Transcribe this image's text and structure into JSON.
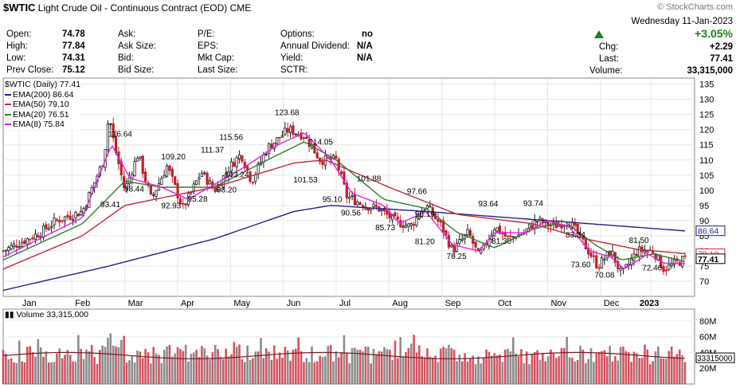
{
  "header": {
    "symbol": "$WTIC",
    "name": "Light Crude Oil - Continuous Contract (EOD)",
    "exchange": "CME",
    "watermark": "© StockCharts.com",
    "date": "Wednesday  11-Jan-2023",
    "change_pct": "+3.05%"
  },
  "quote": {
    "open_label": "Open:",
    "open": "74.78",
    "high_label": "High:",
    "high": "77.84",
    "low_label": "Low:",
    "low": "74.31",
    "prev_label": "Prev Close:",
    "prev": "75.12",
    "ask_label": "Ask:",
    "ask_size_label": "Ask Size:",
    "bid_label": "Bid:",
    "bid_size_label": "Bid Size:",
    "pe_label": "P/E:",
    "eps_label": "EPS:",
    "mktcap_label": "Mkt Cap:",
    "lastsize_label": "Last Size:",
    "options_label": "Options:",
    "options": "no",
    "div_label": "Annual Dividend:",
    "div": "N/A",
    "yield_label": "Yield:",
    "yield": "N/A",
    "sctr_label": "SCTR:",
    "chg_label": "Chg:",
    "chg": "+2.29",
    "last_label": "Last:",
    "last": "77.41",
    "volume_label": "Volume:",
    "volume": "33,315,000"
  },
  "legend": {
    "title": "$WTIC (Daily) 77.41",
    "items": [
      {
        "label": "EMA(200) 86.64",
        "color": "#1f1f8f"
      },
      {
        "label": "EMA(50) 79.10",
        "color": "#c0283c"
      },
      {
        "label": "EMA(20) 76.51",
        "color": "#2e7d2e"
      },
      {
        "label": "EMA(8) 75.84",
        "color": "#e020e0"
      }
    ],
    "volume_label": "Volume 33,315,000"
  },
  "chart_data": {
    "type": "line",
    "title": "$WTIC (Daily) 77.41",
    "x": [
      "Jan",
      "Feb",
      "Mar",
      "Apr",
      "May",
      "Jun",
      "Jul",
      "Aug",
      "Sep",
      "Oct",
      "Nov",
      "Dec",
      "2023"
    ],
    "price_axis": {
      "ylim": [
        65,
        137
      ],
      "ticks": [
        70,
        75,
        80,
        85,
        90,
        95,
        100,
        105,
        110,
        115,
        120,
        125,
        130,
        135
      ]
    },
    "price_anchor_points": [
      [
        0,
        80
      ],
      [
        0.7,
        86
      ],
      [
        1.0,
        90
      ],
      [
        1.5,
        93
      ],
      [
        1.9,
        110
      ],
      [
        2.0,
        125
      ],
      [
        2.1,
        115
      ],
      [
        2.3,
        100
      ],
      [
        2.55,
        112
      ],
      [
        2.8,
        97
      ],
      [
        3.1,
        108
      ],
      [
        3.4,
        94
      ],
      [
        3.75,
        106
      ],
      [
        4.0,
        100
      ],
      [
        4.3,
        108
      ],
      [
        4.5,
        112
      ],
      [
        4.7,
        103
      ],
      [
        5.0,
        114
      ],
      [
        5.4,
        120
      ],
      [
        5.7,
        118
      ],
      [
        6.0,
        110
      ],
      [
        6.3,
        110
      ],
      [
        6.5,
        98
      ],
      [
        6.85,
        95
      ],
      [
        7.1,
        94
      ],
      [
        7.4,
        90
      ],
      [
        7.7,
        88
      ],
      [
        8.0,
        95
      ],
      [
        8.3,
        88
      ],
      [
        8.5,
        80
      ],
      [
        8.8,
        86
      ],
      [
        9.0,
        78
      ],
      [
        9.3,
        88
      ],
      [
        9.55,
        84
      ],
      [
        9.85,
        86
      ],
      [
        10.1,
        90
      ],
      [
        10.4,
        88
      ],
      [
        10.7,
        90
      ],
      [
        11.0,
        82
      ],
      [
        11.25,
        75
      ],
      [
        11.5,
        80
      ],
      [
        11.7,
        72
      ],
      [
        12.0,
        80
      ],
      [
        12.3,
        80
      ],
      [
        12.5,
        74
      ],
      [
        12.9,
        77.4
      ]
    ],
    "series": [
      {
        "name": "EMA(200)",
        "color": "#1f1f8f",
        "anchors": [
          [
            0,
            67
          ],
          [
            2,
            75
          ],
          [
            4,
            84
          ],
          [
            5.5,
            93
          ],
          [
            6.2,
            95
          ],
          [
            8.0,
            93
          ],
          [
            10.3,
            90
          ],
          [
            12.9,
            86.6
          ]
        ]
      },
      {
        "name": "EMA(50)",
        "color": "#c0283c",
        "anchors": [
          [
            0,
            74
          ],
          [
            1.5,
            85
          ],
          [
            2.3,
            95
          ],
          [
            4,
            101
          ],
          [
            5.5,
            109
          ],
          [
            6.1,
            110
          ],
          [
            7.3,
            101
          ],
          [
            8.6,
            92
          ],
          [
            10,
            89
          ],
          [
            11,
            84
          ],
          [
            12,
            80.5
          ],
          [
            12.9,
            79.1
          ]
        ]
      },
      {
        "name": "EMA(20)",
        "color": "#2e7d2e",
        "anchors": [
          [
            0,
            77
          ],
          [
            1.5,
            89
          ],
          [
            2.3,
            103
          ],
          [
            3,
            101
          ],
          [
            4,
            101
          ],
          [
            5,
            110
          ],
          [
            5.7,
            116
          ],
          [
            6.3,
            110
          ],
          [
            7.2,
            97
          ],
          [
            8,
            94
          ],
          [
            8.6,
            86
          ],
          [
            9.3,
            81
          ],
          [
            10,
            87
          ],
          [
            10.6,
            90
          ],
          [
            11.2,
            82
          ],
          [
            11.7,
            77
          ],
          [
            12.3,
            79
          ],
          [
            12.9,
            76.5
          ]
        ]
      },
      {
        "name": "EMA(8)",
        "color": "#e020e0",
        "anchors": [
          [
            0,
            78
          ],
          [
            1.5,
            91
          ],
          [
            2.05,
            115
          ],
          [
            2.4,
            104
          ],
          [
            3.0,
            101
          ],
          [
            3.5,
            97
          ],
          [
            4,
            102
          ],
          [
            4.6,
            108
          ],
          [
            5.2,
            115
          ],
          [
            5.7,
            119
          ],
          [
            6.2,
            110
          ],
          [
            6.6,
            99
          ],
          [
            7.2,
            95
          ],
          [
            7.5,
            89
          ],
          [
            8.0,
            93
          ],
          [
            8.5,
            82
          ],
          [
            9.0,
            80
          ],
          [
            9.3,
            86
          ],
          [
            9.9,
            86
          ],
          [
            10.3,
            90
          ],
          [
            10.7,
            88
          ],
          [
            11.1,
            80
          ],
          [
            11.5,
            78
          ],
          [
            11.75,
            74
          ],
          [
            12.2,
            79
          ],
          [
            12.5,
            76
          ],
          [
            12.9,
            75.8
          ]
        ]
      }
    ],
    "annotations": [
      {
        "x": 2.2,
        "value": "116.64"
      },
      {
        "x": 2.05,
        "value": "93.41"
      },
      {
        "x": 2.5,
        "value": "98.44"
      },
      {
        "x": 3.2,
        "value": "109.20"
      },
      {
        "x": 3.2,
        "value": "92.93"
      },
      {
        "x": 3.7,
        "value": "95.28"
      },
      {
        "x": 3.95,
        "value": "111.37"
      },
      {
        "x": 4.3,
        "value": "115.56"
      },
      {
        "x": 4.25,
        "value": "98.20"
      },
      {
        "x": 4.4,
        "value": "103.24"
      },
      {
        "x": 5.35,
        "value": "123.68"
      },
      {
        "x": 5.7,
        "value": "101.53"
      },
      {
        "x": 6.0,
        "value": "114.05"
      },
      {
        "x": 6.25,
        "value": "95.10"
      },
      {
        "x": 6.6,
        "value": "90.56"
      },
      {
        "x": 6.9,
        "value": "101.88"
      },
      {
        "x": 7.25,
        "value": "85.73"
      },
      {
        "x": 7.85,
        "value": "97.66"
      },
      {
        "x": 8.0,
        "value": "90.19"
      },
      {
        "x": 8.0,
        "value": "81.20"
      },
      {
        "x": 8.6,
        "value": "76.25"
      },
      {
        "x": 9.2,
        "value": "93.64"
      },
      {
        "x": 9.45,
        "value": "81.30"
      },
      {
        "x": 10.05,
        "value": "93.74"
      },
      {
        "x": 10.85,
        "value": "83.34"
      },
      {
        "x": 10.95,
        "value": "73.60"
      },
      {
        "x": 11.4,
        "value": "70.08"
      },
      {
        "x": 12.05,
        "value": "81.50"
      },
      {
        "x": 12.3,
        "value": "72.46"
      }
    ],
    "price_markers": [
      {
        "value": "86.64",
        "color": "#1f1f8f"
      },
      {
        "value": "79.10",
        "color": "#c0283c"
      },
      {
        "value": "77.41",
        "color": "#000000"
      }
    ],
    "volume_axis": {
      "ylim": [
        0,
        95
      ],
      "ticks": [
        {
          "v": 80,
          "label": "80M"
        },
        {
          "v": 60,
          "label": "60M"
        },
        {
          "v": 40,
          "label": "40M"
        },
        {
          "v": 20,
          "label": "20M"
        }
      ],
      "last_label": "33315000"
    }
  }
}
